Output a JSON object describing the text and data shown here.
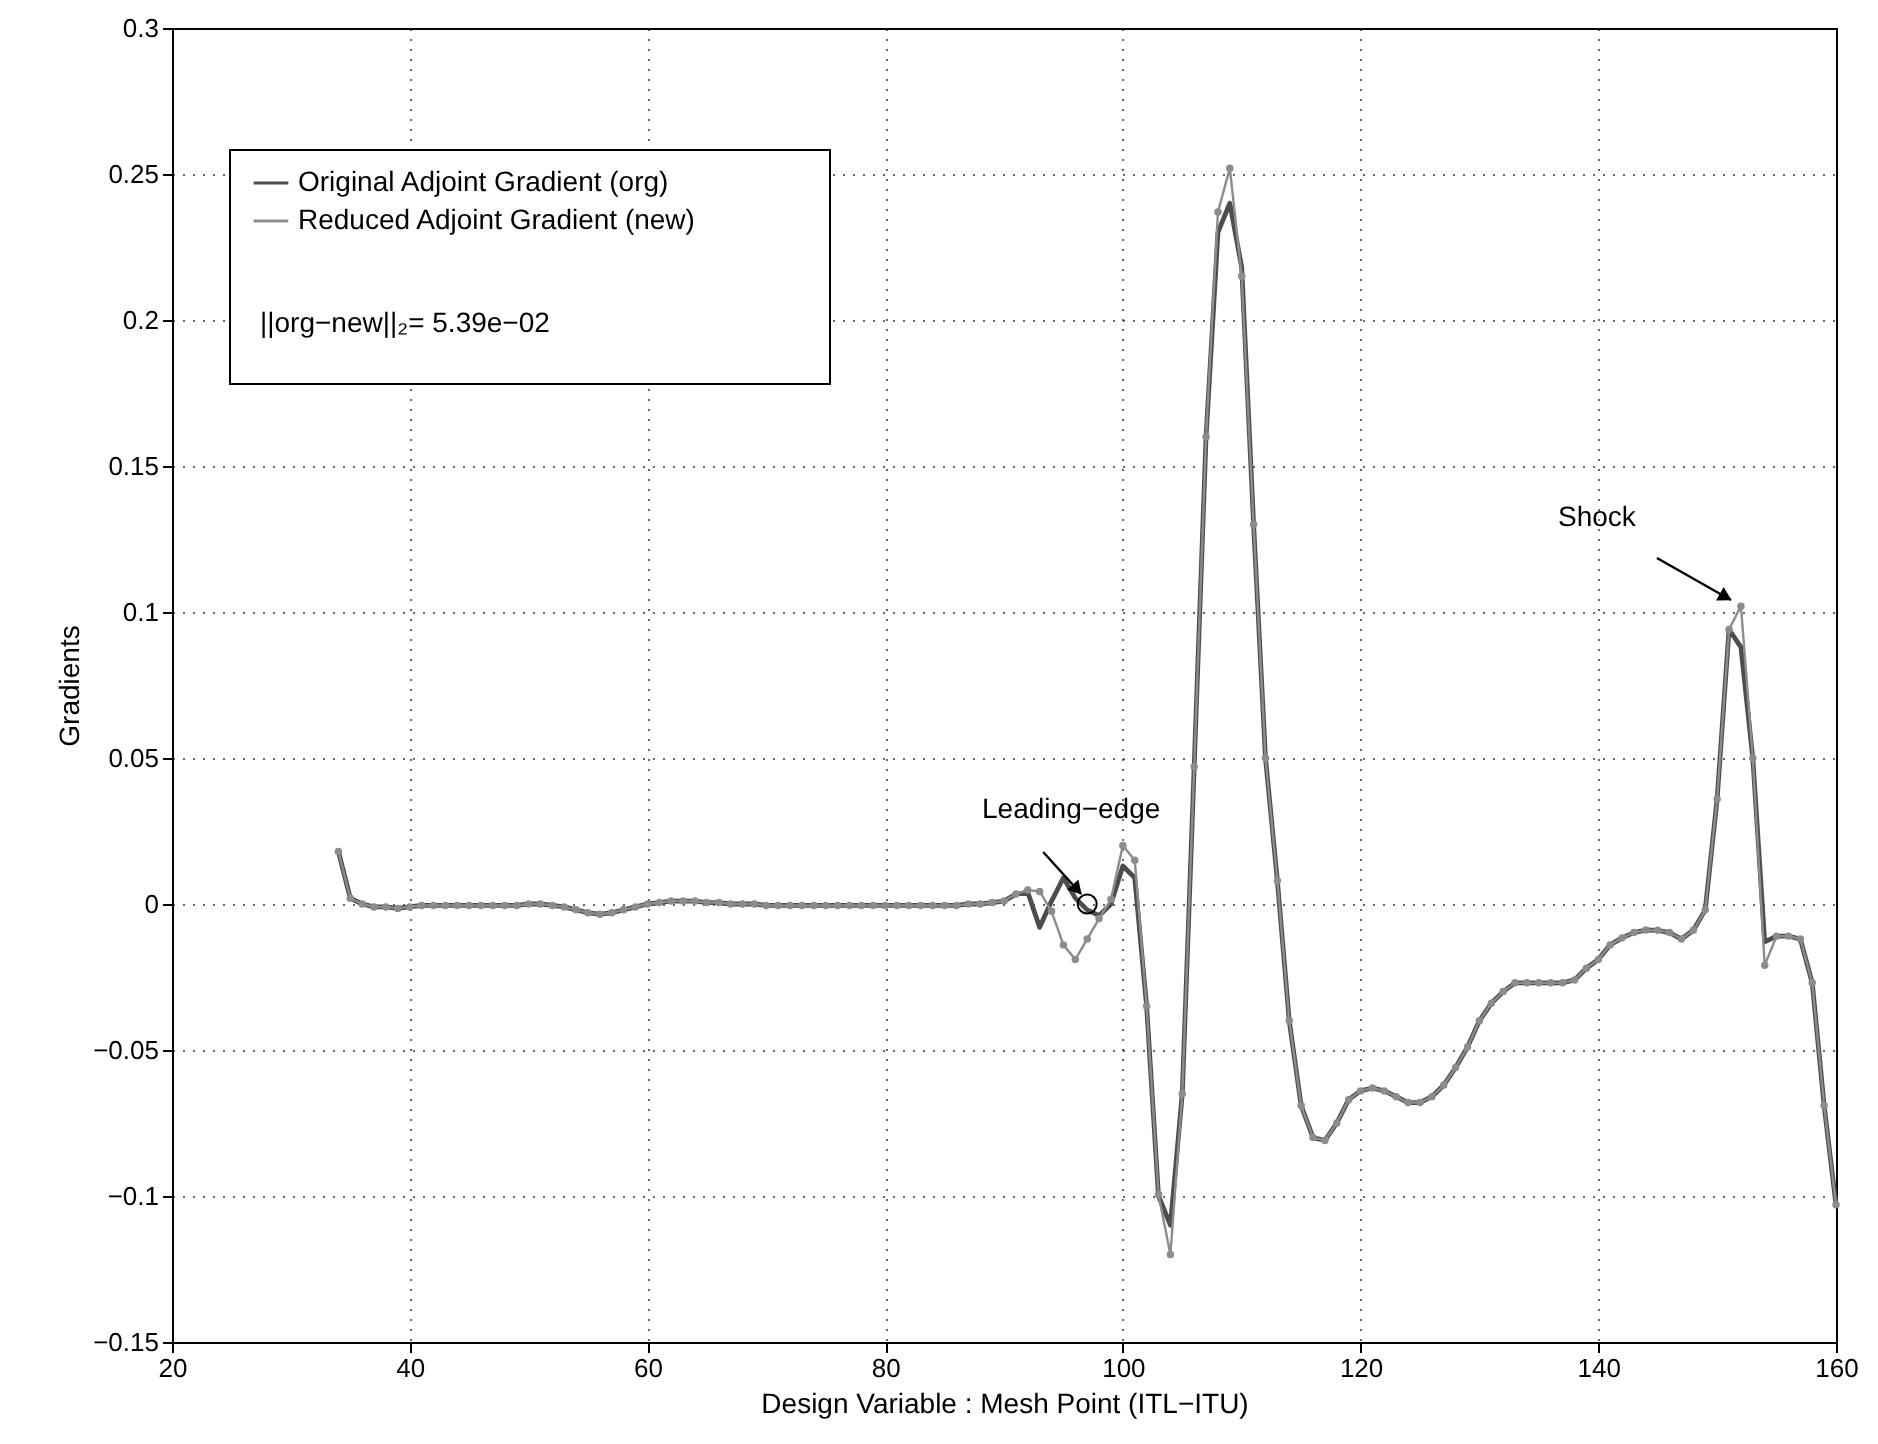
{
  "chart_data": {
    "type": "line",
    "xlabel": "Design Variable : Mesh Point (ITL−ITU)",
    "ylabel": "Gradients",
    "xlim": [
      20,
      160
    ],
    "xticks": [
      20,
      40,
      60,
      80,
      100,
      120,
      140,
      160
    ],
    "ylim": [
      -0.15,
      0.3
    ],
    "yticks": [
      -0.15,
      -0.1,
      -0.05,
      0,
      0.05,
      0.1,
      0.15,
      0.2,
      0.25,
      0.3
    ],
    "grid": true,
    "legend": "top left",
    "annotations": [
      {
        "text": "Leading−edge",
        "x": 97,
        "y": 0
      },
      {
        "text": "Shock",
        "x": 152,
        "y": 0.1
      },
      "||org−new||₂= 5.39e−02"
    ],
    "x": [
      34,
      35,
      36,
      37,
      38,
      39,
      40,
      41,
      42,
      43,
      44,
      45,
      46,
      47,
      48,
      49,
      50,
      51,
      52,
      53,
      54,
      55,
      56,
      57,
      58,
      59,
      60,
      61,
      62,
      63,
      64,
      65,
      66,
      67,
      68,
      69,
      70,
      71,
      72,
      73,
      74,
      75,
      76,
      77,
      78,
      79,
      80,
      81,
      82,
      83,
      84,
      85,
      86,
      87,
      88,
      89,
      90,
      91,
      92,
      93,
      94,
      95,
      96,
      97,
      98,
      99,
      100,
      101,
      102,
      103,
      104,
      105,
      106,
      107,
      108,
      109,
      110,
      111,
      112,
      113,
      114,
      115,
      116,
      117,
      118,
      119,
      120,
      121,
      122,
      123,
      124,
      125,
      126,
      127,
      128,
      129,
      130,
      131,
      132,
      133,
      134,
      135,
      136,
      137,
      138,
      139,
      140,
      141,
      142,
      143,
      144,
      145,
      146,
      147,
      148,
      149,
      150,
      151,
      152,
      153,
      154,
      155,
      156,
      157,
      158,
      159,
      160
    ],
    "series": [
      {
        "name": "Original Adjoint Gradient (org)",
        "color": "#4d4d4d",
        "values": [
          0.018,
          0.002,
          0,
          -0.001,
          -0.001,
          -0.0015,
          -0.001,
          -0.0005,
          -0.0005,
          -0.0005,
          -0.0005,
          -0.0005,
          -0.0005,
          -0.0005,
          -0.0005,
          -0.0005,
          0,
          0,
          -0.0005,
          -0.001,
          -0.002,
          -0.003,
          -0.0035,
          -0.003,
          -0.002,
          -0.001,
          0,
          0.0005,
          0.001,
          0.001,
          0.001,
          0.0005,
          0.0005,
          0,
          0,
          0,
          -0.0005,
          -0.0005,
          -0.0005,
          -0.0005,
          -0.0005,
          -0.0005,
          -0.0005,
          -0.0005,
          -0.0005,
          -0.0005,
          -0.0005,
          -0.0005,
          -0.0005,
          -0.0005,
          -0.0005,
          -0.0005,
          -0.0005,
          0,
          0,
          0.0005,
          0.001,
          0.0034,
          0.004,
          -0.008,
          0.001,
          0.009,
          0.002,
          -0.002,
          -0.004,
          0,
          0.013,
          0.009,
          -0.035,
          -0.1,
          -0.11,
          -0.065,
          0.047,
          0.16,
          0.23,
          0.24,
          0.218,
          0.13,
          0.05,
          0.008,
          -0.04,
          -0.069,
          -0.08,
          -0.081,
          -0.075,
          -0.067,
          -0.064,
          -0.063,
          -0.064,
          -0.066,
          -0.068,
          -0.068,
          -0.066,
          -0.062,
          -0.056,
          -0.049,
          -0.04,
          -0.034,
          -0.03,
          -0.027,
          -0.027,
          -0.027,
          -0.027,
          -0.027,
          -0.026,
          -0.022,
          -0.019,
          -0.014,
          -0.0116,
          -0.0098,
          -0.0089,
          -0.009,
          -0.0098,
          -0.012,
          -0.009,
          -0.002,
          0.036,
          0.094,
          0.088,
          0.05,
          -0.013,
          -0.011,
          -0.011,
          -0.012,
          -0.027,
          -0.069,
          -0.103
        ]
      },
      {
        "name": "Reduced Adjoint Gradient (new)",
        "color": "#8c8c8c",
        "marker": "circle",
        "values": [
          0.018,
          0.002,
          0,
          -0.001,
          -0.001,
          -0.0015,
          -0.001,
          -0.0005,
          -0.0005,
          -0.0005,
          -0.0005,
          -0.0005,
          -0.0005,
          -0.0005,
          -0.0005,
          -0.0005,
          0,
          0,
          -0.0005,
          -0.001,
          -0.002,
          -0.003,
          -0.0035,
          -0.003,
          -0.002,
          -0.001,
          0,
          0.0005,
          0.001,
          0.001,
          0.001,
          0.0005,
          0.0005,
          0,
          0,
          0,
          -0.0005,
          -0.0005,
          -0.0005,
          -0.0005,
          -0.0005,
          -0.0005,
          -0.0005,
          -0.0005,
          -0.0005,
          -0.0005,
          -0.0005,
          -0.0005,
          -0.0005,
          -0.0005,
          -0.0005,
          -0.0005,
          -0.0005,
          0,
          0,
          0.0005,
          0.001,
          0.0034,
          0.0048,
          0.0043,
          -0.0025,
          -0.014,
          -0.019,
          -0.012,
          -0.005,
          0.0016,
          0.02,
          0.015,
          -0.035,
          -0.0995,
          -0.12,
          -0.065,
          0.047,
          0.16,
          0.237,
          0.252,
          0.215,
          0.13,
          0.05,
          0.008,
          -0.04,
          -0.069,
          -0.08,
          -0.081,
          -0.075,
          -0.067,
          -0.064,
          -0.063,
          -0.064,
          -0.066,
          -0.068,
          -0.068,
          -0.066,
          -0.062,
          -0.056,
          -0.049,
          -0.04,
          -0.034,
          -0.03,
          -0.027,
          -0.027,
          -0.027,
          -0.027,
          -0.027,
          -0.026,
          -0.022,
          -0.019,
          -0.014,
          -0.0116,
          -0.0098,
          -0.0089,
          -0.009,
          -0.0098,
          -0.012,
          -0.009,
          -0.002,
          0.036,
          0.094,
          0.102,
          0.05,
          -0.021,
          -0.011,
          -0.011,
          -0.012,
          -0.027,
          -0.069,
          -0.103
        ]
      }
    ]
  }
}
